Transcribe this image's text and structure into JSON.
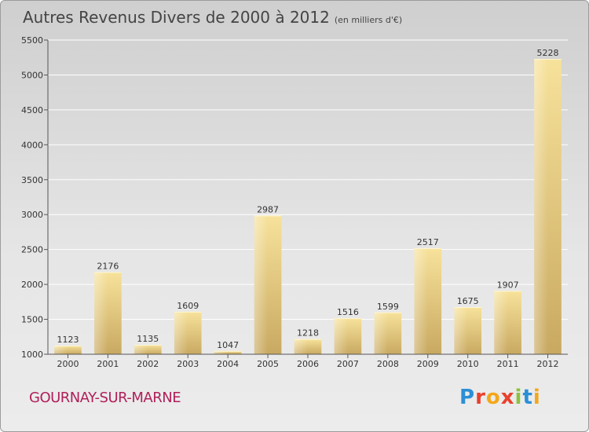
{
  "header": {
    "title": "Autres Revenus Divers de 2000 à 2012",
    "unit": "(en milliers d'€)"
  },
  "footer": {
    "city": "GOURNAY-SUR-MARNE",
    "brand": "Proxiti"
  },
  "colors": {
    "bar_light": "#f7e29b",
    "bar_dark": "#c9a961",
    "city": "#b0205a"
  },
  "chart_data": {
    "type": "bar",
    "title": "Autres Revenus Divers de 2000 à 2012",
    "xlabel": "",
    "ylabel": "",
    "categories": [
      "2000",
      "2001",
      "2002",
      "2003",
      "2004",
      "2005",
      "2006",
      "2007",
      "2008",
      "2009",
      "2010",
      "2011",
      "2012"
    ],
    "values": [
      1123,
      2176,
      1135,
      1609,
      1047,
      2987,
      1218,
      1516,
      1599,
      2517,
      1675,
      1907,
      5228
    ],
    "ylim": [
      1000,
      5500
    ],
    "yticks": [
      1000,
      1500,
      2000,
      2500,
      3000,
      3500,
      4000,
      4500,
      5000,
      5500
    ],
    "grid": true,
    "legend": "none"
  }
}
